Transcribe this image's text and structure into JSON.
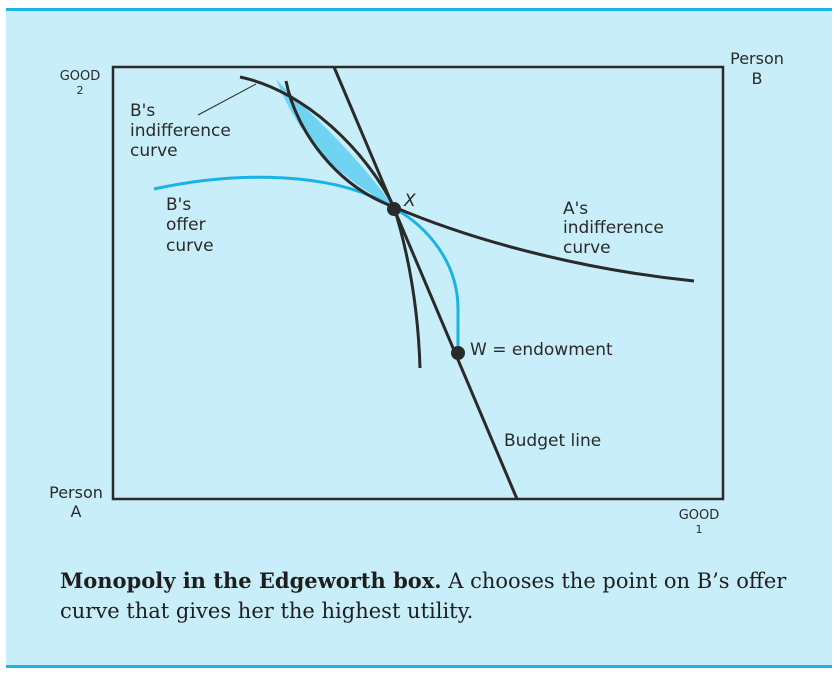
{
  "diagram": {
    "corner_a_top": "GOOD",
    "corner_a_top_sub": "2",
    "corner_a_bottom": "Person",
    "corner_a_bottom_sub": "A",
    "corner_b_top": "Person",
    "corner_b_top_sub": "B",
    "corner_b_bottom": "GOOD",
    "corner_b_bottom_sub": "1",
    "b_indiff_label": [
      "B's",
      "indifference",
      "curve"
    ],
    "b_offer_label": [
      "B's",
      "offer",
      "curve"
    ],
    "a_indiff_label": [
      "A's",
      "indifference",
      "curve"
    ],
    "point_x_label": "X",
    "point_w_label": "W = endowment",
    "budget_line_label": "Budget line",
    "colors": {
      "background": "#c8eef9",
      "accent": "#19b4e6",
      "lens_fill": "#6fd4f2",
      "curve": "#2a2a2a"
    }
  },
  "caption": {
    "title": "Monopoly in the Edgeworth box.",
    "text": "A chooses the point on B’s offer curve that gives her the highest utility."
  }
}
